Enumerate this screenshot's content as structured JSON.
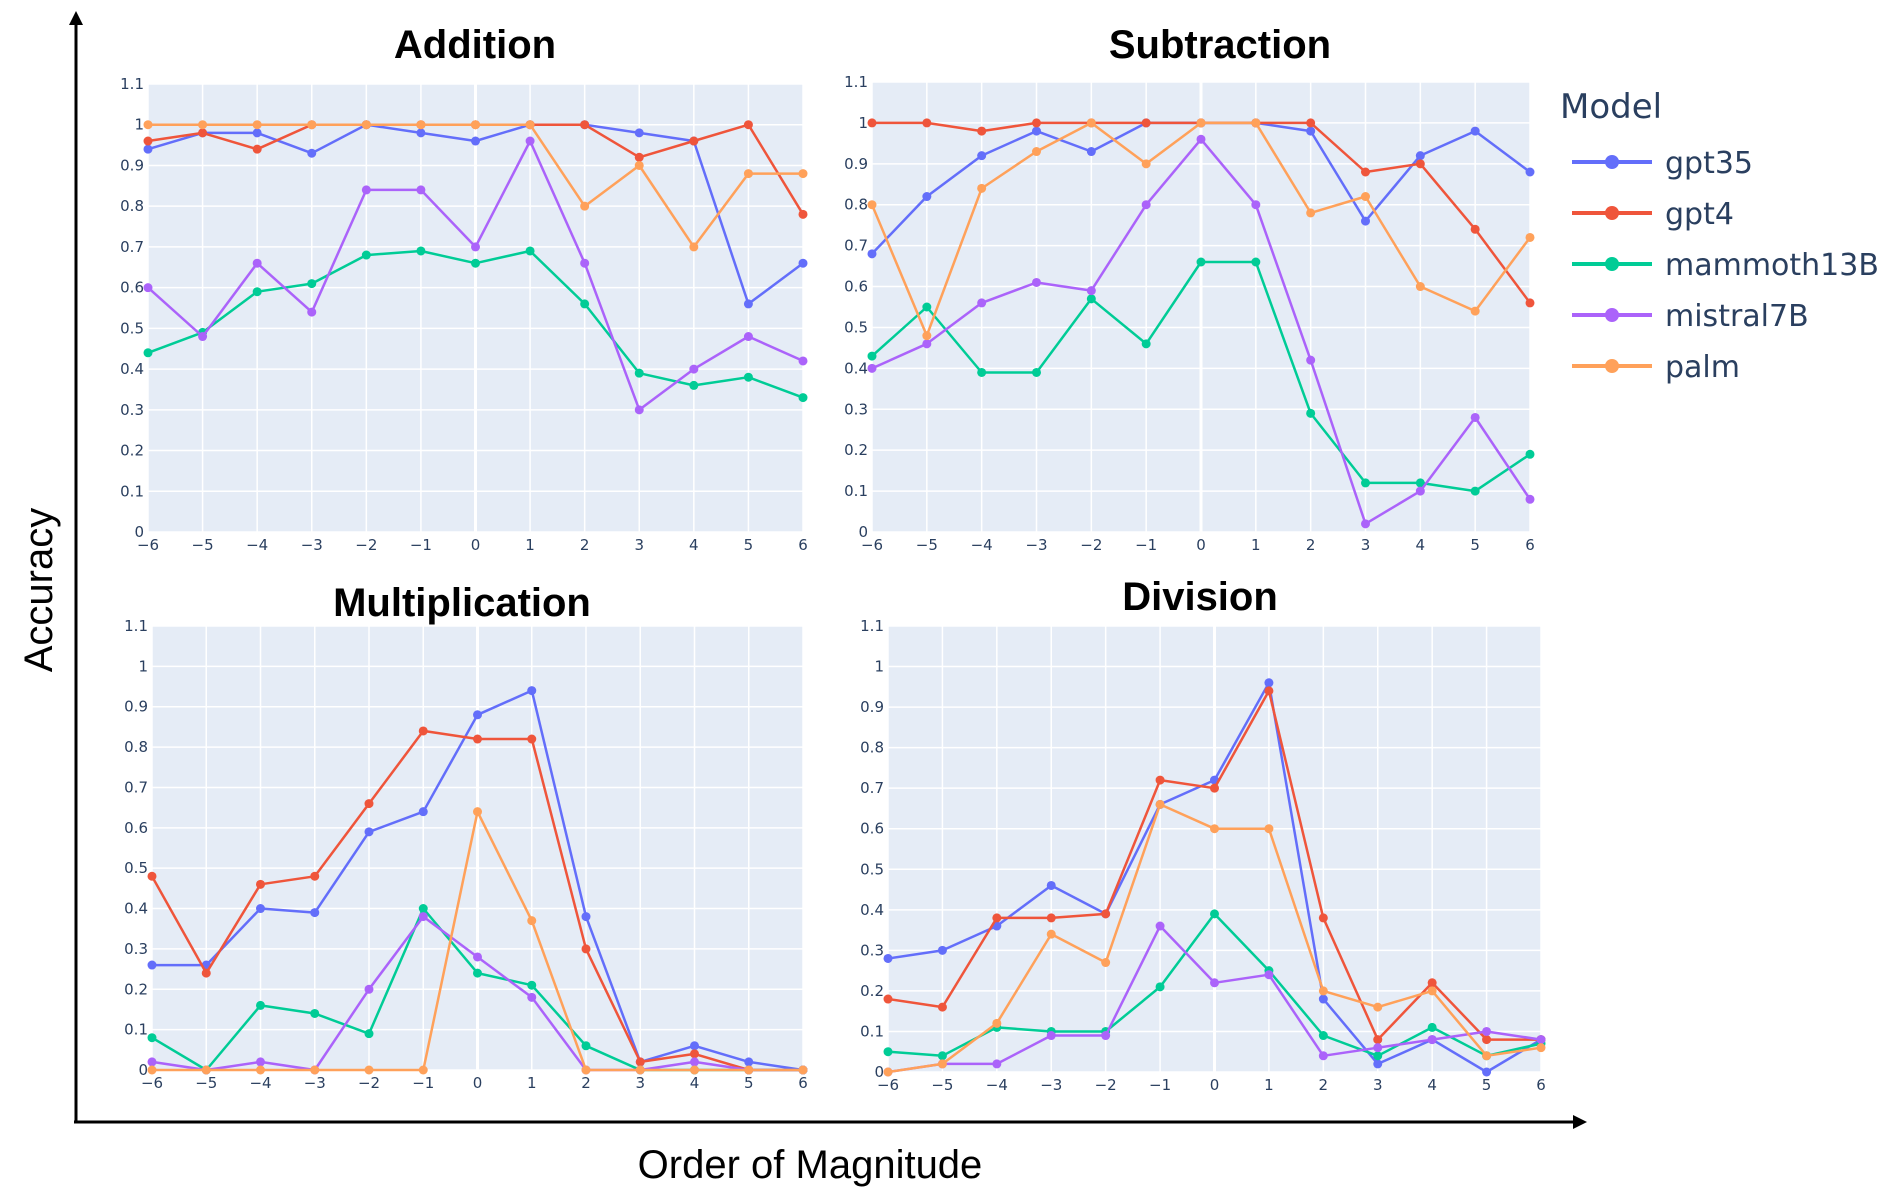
{
  "figure": {
    "xlabel": "Order of Magnitude",
    "ylabel": "Accuracy",
    "legend_title": "Model"
  },
  "colors": {
    "gpt35": "#636efa",
    "gpt4": "#ef553b",
    "mammoth13B": "#00cc96",
    "mistral7B": "#ab63fa",
    "palm": "#ffa15a",
    "plot_bg": "#e5ecf6",
    "grid": "#ffffff"
  },
  "chart_data": [
    {
      "type": "line",
      "title": "Addition",
      "x": [
        -6,
        -5,
        -4,
        -3,
        -2,
        -1,
        0,
        1,
        2,
        3,
        4,
        5,
        6
      ],
      "xticks": [
        "−6",
        "−5",
        "−4",
        "−3",
        "−2",
        "−1",
        "0",
        "1",
        "2",
        "3",
        "4",
        "5",
        "6"
      ],
      "yticks": [
        "0",
        "0.1",
        "0.2",
        "0.3",
        "0.4",
        "0.5",
        "0.6",
        "0.7",
        "0.8",
        "0.9",
        "1",
        "1.1"
      ],
      "xlim": [
        -6,
        6
      ],
      "ylim": [
        0,
        1.1
      ],
      "grid": true,
      "series": [
        {
          "name": "gpt35",
          "values": [
            0.94,
            0.98,
            0.98,
            0.93,
            1.0,
            0.98,
            0.96,
            1.0,
            1.0,
            0.98,
            0.96,
            0.56,
            0.66
          ]
        },
        {
          "name": "gpt4",
          "values": [
            0.96,
            0.98,
            0.94,
            1.0,
            1.0,
            1.0,
            1.0,
            1.0,
            1.0,
            0.92,
            0.96,
            1.0,
            0.78
          ]
        },
        {
          "name": "mammoth13B",
          "values": [
            0.44,
            0.49,
            0.59,
            0.61,
            0.68,
            0.69,
            0.66,
            0.69,
            0.56,
            0.39,
            0.36,
            0.38,
            0.33
          ]
        },
        {
          "name": "mistral7B",
          "values": [
            0.6,
            0.48,
            0.66,
            0.54,
            0.84,
            0.84,
            0.7,
            0.96,
            0.66,
            0.3,
            0.4,
            0.48,
            0.42
          ]
        },
        {
          "name": "palm",
          "values": [
            1.0,
            1.0,
            1.0,
            1.0,
            1.0,
            1.0,
            1.0,
            1.0,
            0.8,
            0.9,
            0.7,
            0.88,
            0.88
          ]
        }
      ]
    },
    {
      "type": "line",
      "title": "Subtraction",
      "x": [
        -6,
        -5,
        -4,
        -3,
        -2,
        -1,
        0,
        1,
        2,
        3,
        4,
        5,
        6
      ],
      "xticks": [
        "−6",
        "−5",
        "−4",
        "−3",
        "−2",
        "−1",
        "0",
        "1",
        "2",
        "3",
        "4",
        "5",
        "6"
      ],
      "yticks": [
        "0",
        "0.1",
        "0.2",
        "0.3",
        "0.4",
        "0.5",
        "0.6",
        "0.7",
        "0.8",
        "0.9",
        "1",
        "1.1"
      ],
      "xlim": [
        -6,
        6
      ],
      "ylim": [
        0,
        1.1
      ],
      "grid": true,
      "series": [
        {
          "name": "gpt35",
          "values": [
            0.68,
            0.82,
            0.92,
            0.98,
            0.93,
            1.0,
            1.0,
            1.0,
            0.98,
            0.76,
            0.92,
            0.98,
            0.88
          ]
        },
        {
          "name": "gpt4",
          "values": [
            1.0,
            1.0,
            0.98,
            1.0,
            1.0,
            1.0,
            1.0,
            1.0,
            1.0,
            0.88,
            0.9,
            0.74,
            0.56
          ]
        },
        {
          "name": "mammoth13B",
          "values": [
            0.43,
            0.55,
            0.39,
            0.39,
            0.57,
            0.46,
            0.66,
            0.66,
            0.29,
            0.12,
            0.12,
            0.1,
            0.19
          ]
        },
        {
          "name": "mistral7B",
          "values": [
            0.4,
            0.46,
            0.56,
            0.61,
            0.59,
            0.8,
            0.96,
            0.8,
            0.42,
            0.02,
            0.1,
            0.28,
            0.08
          ]
        },
        {
          "name": "palm",
          "values": [
            0.8,
            0.48,
            0.84,
            0.93,
            1.0,
            0.9,
            1.0,
            1.0,
            0.78,
            0.82,
            0.6,
            0.54,
            0.72
          ]
        }
      ]
    },
    {
      "type": "line",
      "title": "Multiplication",
      "x": [
        -6,
        -5,
        -4,
        -3,
        -2,
        -1,
        0,
        1,
        2,
        3,
        4,
        5,
        6
      ],
      "xticks": [
        "−6",
        "−5",
        "−4",
        "−3",
        "−2",
        "−1",
        "0",
        "1",
        "2",
        "3",
        "4",
        "5",
        "6"
      ],
      "yticks": [
        "0",
        "0.1",
        "0.2",
        "0.3",
        "0.4",
        "0.5",
        "0.6",
        "0.7",
        "0.8",
        "0.9",
        "1",
        "1.1"
      ],
      "xlim": [
        -6,
        6
      ],
      "ylim": [
        0,
        1.1
      ],
      "grid": true,
      "series": [
        {
          "name": "gpt35",
          "values": [
            0.26,
            0.26,
            0.4,
            0.39,
            0.59,
            0.64,
            0.88,
            0.94,
            0.38,
            0.02,
            0.06,
            0.02,
            0.0
          ]
        },
        {
          "name": "gpt4",
          "values": [
            0.48,
            0.24,
            0.46,
            0.48,
            0.66,
            0.84,
            0.82,
            0.82,
            0.3,
            0.02,
            0.04,
            0.0,
            0.0
          ]
        },
        {
          "name": "mammoth13B",
          "values": [
            0.08,
            0.0,
            0.16,
            0.14,
            0.09,
            0.4,
            0.24,
            0.21,
            0.06,
            0.0,
            0.0,
            0.0,
            0.0
          ]
        },
        {
          "name": "mistral7B",
          "values": [
            0.02,
            0.0,
            0.02,
            0.0,
            0.2,
            0.38,
            0.28,
            0.18,
            0.0,
            0.0,
            0.02,
            0.0,
            0.0
          ]
        },
        {
          "name": "palm",
          "values": [
            0.0,
            0.0,
            0.0,
            0.0,
            0.0,
            0.0,
            0.64,
            0.37,
            0.0,
            0.0,
            0.0,
            0.0,
            0.0
          ]
        }
      ]
    },
    {
      "type": "line",
      "title": "Division",
      "x": [
        -6,
        -5,
        -4,
        -3,
        -2,
        -1,
        0,
        1,
        2,
        3,
        4,
        5,
        6
      ],
      "xticks": [
        "−6",
        "−5",
        "−4",
        "−3",
        "−2",
        "−1",
        "0",
        "1",
        "2",
        "3",
        "4",
        "5",
        "6"
      ],
      "yticks": [
        "0",
        "0.1",
        "0.2",
        "0.3",
        "0.4",
        "0.5",
        "0.6",
        "0.7",
        "0.8",
        "0.9",
        "1",
        "1.1"
      ],
      "xlim": [
        -6,
        6
      ],
      "ylim": [
        0,
        1.1
      ],
      "grid": true,
      "series": [
        {
          "name": "gpt35",
          "values": [
            0.28,
            0.3,
            0.36,
            0.46,
            0.39,
            0.66,
            0.72,
            0.96,
            0.18,
            0.02,
            0.08,
            0.0,
            0.08
          ]
        },
        {
          "name": "gpt4",
          "values": [
            0.18,
            0.16,
            0.38,
            0.38,
            0.39,
            0.72,
            0.7,
            0.94,
            0.38,
            0.08,
            0.22,
            0.08,
            0.08
          ]
        },
        {
          "name": "mammoth13B",
          "values": [
            0.05,
            0.04,
            0.11,
            0.1,
            0.1,
            0.21,
            0.39,
            0.25,
            0.09,
            0.04,
            0.11,
            0.04,
            0.07
          ]
        },
        {
          "name": "mistral7B",
          "values": [
            0.0,
            0.02,
            0.02,
            0.09,
            0.09,
            0.36,
            0.22,
            0.24,
            0.04,
            0.06,
            0.08,
            0.1,
            0.08
          ]
        },
        {
          "name": "palm",
          "values": [
            0.0,
            0.02,
            0.12,
            0.34,
            0.27,
            0.66,
            0.6,
            0.6,
            0.2,
            0.16,
            0.2,
            0.04,
            0.06
          ]
        }
      ]
    }
  ]
}
